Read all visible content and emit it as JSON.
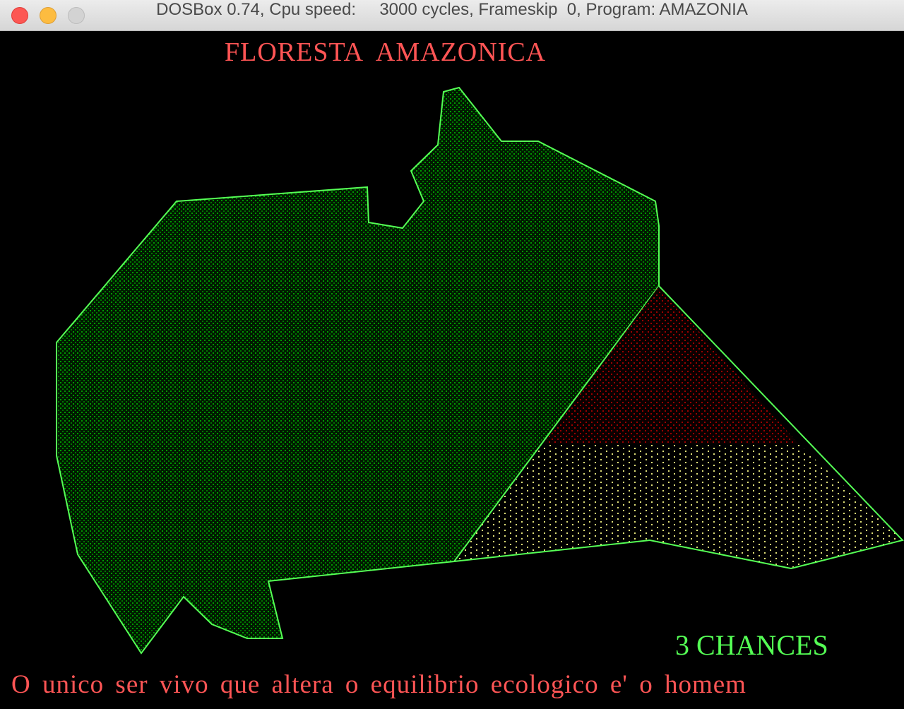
{
  "window": {
    "title": "DOSBox 0.74, Cpu speed:     3000 cycles, Frameskip  0, Program: AMAZONIA"
  },
  "game": {
    "title": "FLORESTA  AMAZONICA",
    "chances": "3 CHANCES",
    "message": "O unico ser vivo que altera o equilibrio ecologico e' o homem"
  },
  "colors": {
    "outline": "#55ff55",
    "forest_fill": "#00aa00",
    "burned_fill": "#aa0000",
    "cleared_fill": "#ffff55",
    "text_red": "#ff5555",
    "text_green": "#55ff55"
  }
}
